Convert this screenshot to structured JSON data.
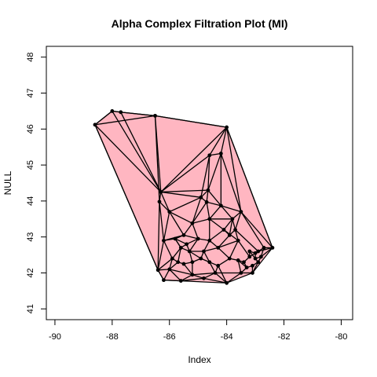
{
  "chart_data": {
    "type": "scatter",
    "title": "Alpha Complex Filtration Plot (MI)",
    "xlabel": "Index",
    "ylabel": "NULL",
    "xlim": [
      -90.3,
      -79.6
    ],
    "ylim": [
      40.7,
      48.3
    ],
    "xticks": [
      -90,
      -88,
      -86,
      -84,
      -82,
      -80
    ],
    "yticks": [
      41,
      42,
      43,
      44,
      45,
      46,
      47,
      48
    ],
    "fill_color": "#ffb6c1",
    "edge_color": "#000000",
    "hull": [
      [
        -88.6,
        46.12
      ],
      [
        -88.0,
        46.5
      ],
      [
        -87.7,
        46.47
      ],
      [
        -86.5,
        46.37
      ],
      [
        -84.0,
        46.05
      ],
      [
        -82.4,
        42.7
      ],
      [
        -83.1,
        42.0
      ],
      [
        -84.0,
        41.72
      ],
      [
        -86.2,
        41.8
      ],
      [
        -86.4,
        42.08
      ]
    ],
    "points": [
      [
        -88.6,
        46.12
      ],
      [
        -88.0,
        46.5
      ],
      [
        -87.7,
        46.47
      ],
      [
        -86.5,
        46.37
      ],
      [
        -84.0,
        46.05
      ],
      [
        -84.2,
        45.32
      ],
      [
        -84.6,
        45.27
      ],
      [
        -86.3,
        44.25
      ],
      [
        -86.35,
        43.98
      ],
      [
        -84.65,
        44.3
      ],
      [
        -84.9,
        44.1
      ],
      [
        -84.2,
        43.87
      ],
      [
        -84.7,
        43.97
      ],
      [
        -83.5,
        43.7
      ],
      [
        -83.8,
        43.5
      ],
      [
        -83.7,
        43.2
      ],
      [
        -83.9,
        43.05
      ],
      [
        -84.6,
        43.5
      ],
      [
        -85.2,
        43.38
      ],
      [
        -85.5,
        43.05
      ],
      [
        -86.0,
        43.7
      ],
      [
        -86.2,
        42.9
      ],
      [
        -85.8,
        42.95
      ],
      [
        -85.4,
        42.8
      ],
      [
        -85.0,
        42.95
      ],
      [
        -84.6,
        42.9
      ],
      [
        -84.3,
        42.7
      ],
      [
        -84.8,
        42.6
      ],
      [
        -85.3,
        42.6
      ],
      [
        -85.6,
        42.7
      ],
      [
        -85.9,
        42.4
      ],
      [
        -85.7,
        42.3
      ],
      [
        -85.5,
        42.25
      ],
      [
        -85.2,
        42.3
      ],
      [
        -84.9,
        42.4
      ],
      [
        -84.6,
        42.3
      ],
      [
        -84.3,
        42.2
      ],
      [
        -83.9,
        42.4
      ],
      [
        -83.6,
        42.35
      ],
      [
        -83.4,
        42.3
      ],
      [
        -83.2,
        42.45
      ],
      [
        -83.0,
        42.55
      ],
      [
        -82.9,
        42.6
      ],
      [
        -83.1,
        42.2
      ],
      [
        -83.3,
        42.15
      ],
      [
        -82.4,
        42.7
      ],
      [
        -83.1,
        42.0
      ],
      [
        -84.0,
        41.72
      ],
      [
        -84.8,
        41.85
      ],
      [
        -85.6,
        41.78
      ],
      [
        -86.2,
        41.8
      ],
      [
        -86.4,
        42.08
      ],
      [
        -86.0,
        42.1
      ],
      [
        -85.2,
        41.95
      ],
      [
        -84.4,
        42.0
      ],
      [
        -83.5,
        42.0
      ],
      [
        -82.9,
        42.3
      ],
      [
        -82.8,
        42.45
      ],
      [
        -83.0,
        42.4
      ],
      [
        -83.2,
        42.6
      ],
      [
        -82.7,
        42.7
      ],
      [
        -83.6,
        42.9
      ],
      [
        -84.1,
        43.2
      ]
    ],
    "edges": [
      [
        0,
        1
      ],
      [
        1,
        2
      ],
      [
        2,
        3
      ],
      [
        3,
        4
      ],
      [
        0,
        3
      ],
      [
        0,
        7
      ],
      [
        0,
        51
      ],
      [
        1,
        7
      ],
      [
        2,
        7
      ],
      [
        3,
        7
      ],
      [
        3,
        8
      ],
      [
        4,
        5
      ],
      [
        4,
        6
      ],
      [
        4,
        7
      ],
      [
        4,
        13
      ],
      [
        4,
        45
      ],
      [
        5,
        6
      ],
      [
        5,
        9
      ],
      [
        5,
        11
      ],
      [
        5,
        13
      ],
      [
        6,
        7
      ],
      [
        6,
        9
      ],
      [
        6,
        10
      ],
      [
        7,
        8
      ],
      [
        7,
        9
      ],
      [
        7,
        10
      ],
      [
        7,
        20
      ],
      [
        8,
        20
      ],
      [
        8,
        21
      ],
      [
        8,
        51
      ],
      [
        9,
        10
      ],
      [
        9,
        11
      ],
      [
        9,
        12
      ],
      [
        10,
        12
      ],
      [
        10,
        18
      ],
      [
        10,
        20
      ],
      [
        11,
        12
      ],
      [
        11,
        13
      ],
      [
        11,
        14
      ],
      [
        11,
        17
      ],
      [
        12,
        17
      ],
      [
        12,
        18
      ],
      [
        13,
        14
      ],
      [
        13,
        45
      ],
      [
        13,
        60
      ],
      [
        14,
        15
      ],
      [
        14,
        17
      ],
      [
        14,
        62
      ],
      [
        15,
        16
      ],
      [
        15,
        61
      ],
      [
        15,
        42
      ],
      [
        16,
        62
      ],
      [
        16,
        26
      ],
      [
        17,
        18
      ],
      [
        17,
        62
      ],
      [
        17,
        25
      ],
      [
        18,
        19
      ],
      [
        18,
        20
      ],
      [
        18,
        24
      ],
      [
        19,
        20
      ],
      [
        19,
        21
      ],
      [
        19,
        22
      ],
      [
        19,
        24
      ],
      [
        20,
        21
      ],
      [
        21,
        22
      ],
      [
        21,
        51
      ],
      [
        21,
        30
      ],
      [
        22,
        23
      ],
      [
        22,
        29
      ],
      [
        23,
        24
      ],
      [
        23,
        28
      ],
      [
        23,
        29
      ],
      [
        24,
        25
      ],
      [
        24,
        28
      ],
      [
        25,
        26
      ],
      [
        25,
        27
      ],
      [
        25,
        62
      ],
      [
        26,
        27
      ],
      [
        26,
        37
      ],
      [
        26,
        61
      ],
      [
        27,
        28
      ],
      [
        27,
        34
      ],
      [
        27,
        35
      ],
      [
        28,
        29
      ],
      [
        28,
        33
      ],
      [
        28,
        34
      ],
      [
        29,
        30
      ],
      [
        29,
        31
      ],
      [
        30,
        31
      ],
      [
        30,
        51
      ],
      [
        30,
        52
      ],
      [
        31,
        32
      ],
      [
        31,
        52
      ],
      [
        32,
        33
      ],
      [
        32,
        53
      ],
      [
        33,
        34
      ],
      [
        33,
        53
      ],
      [
        34,
        35
      ],
      [
        35,
        36
      ],
      [
        35,
        54
      ],
      [
        36,
        37
      ],
      [
        36,
        47
      ],
      [
        36,
        54
      ],
      [
        37,
        38
      ],
      [
        37,
        61
      ],
      [
        38,
        39
      ],
      [
        38,
        55
      ],
      [
        39,
        40
      ],
      [
        39,
        44
      ],
      [
        40,
        41
      ],
      [
        40,
        61
      ],
      [
        41,
        42
      ],
      [
        41,
        58
      ],
      [
        42,
        60
      ],
      [
        42,
        45
      ],
      [
        43,
        44
      ],
      [
        43,
        46
      ],
      [
        43,
        56
      ],
      [
        44,
        55
      ],
      [
        45,
        57
      ],
      [
        45,
        60
      ],
      [
        46,
        55
      ],
      [
        46,
        57
      ],
      [
        47,
        48
      ],
      [
        47,
        54
      ],
      [
        47,
        55
      ],
      [
        48,
        49
      ],
      [
        48,
        53
      ],
      [
        48,
        54
      ],
      [
        49,
        50
      ],
      [
        49,
        52
      ],
      [
        49,
        53
      ],
      [
        50,
        51
      ],
      [
        50,
        52
      ],
      [
        51,
        52
      ],
      [
        52,
        53
      ],
      [
        53,
        54
      ],
      [
        54,
        55
      ],
      [
        56,
        57
      ],
      [
        56,
        58
      ],
      [
        57,
        58
      ],
      [
        58,
        59
      ],
      [
        59,
        41
      ],
      [
        59,
        40
      ],
      [
        61,
        62
      ],
      [
        38,
        44
      ],
      [
        29,
        22
      ],
      [
        60,
        57
      ],
      [
        13,
        15
      ],
      [
        14,
        16
      ]
    ]
  }
}
